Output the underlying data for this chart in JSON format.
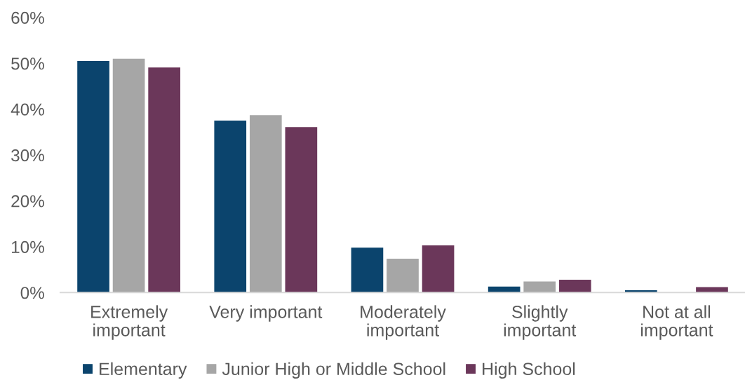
{
  "chart_data": {
    "type": "bar",
    "categories": [
      "Extremely important",
      "Very important",
      "Moderately important",
      "Slightly important",
      "Not at all important"
    ],
    "series": [
      {
        "name": "Elementary",
        "color": "#0b446d",
        "values": [
          50.5,
          37.5,
          9.8,
          1.3,
          0.5
        ]
      },
      {
        "name": "Junior High or Middle School",
        "color": "#a6a6a6",
        "values": [
          51.0,
          38.7,
          7.4,
          2.4,
          0
        ]
      },
      {
        "name": "High School",
        "color": "#6b375a",
        "values": [
          49.1,
          36.1,
          10.3,
          2.8,
          1.2
        ]
      }
    ],
    "ylim": [
      0,
      60
    ],
    "yticks": [
      {
        "value": 0,
        "label": "0%"
      },
      {
        "value": 10,
        "label": "10%"
      },
      {
        "value": 20,
        "label": "20%"
      },
      {
        "value": 30,
        "label": "30%"
      },
      {
        "value": 40,
        "label": "40%"
      },
      {
        "value": 50,
        "label": "50%"
      },
      {
        "value": 60,
        "label": "60%"
      }
    ],
    "grid": false,
    "legend": "bottom"
  }
}
